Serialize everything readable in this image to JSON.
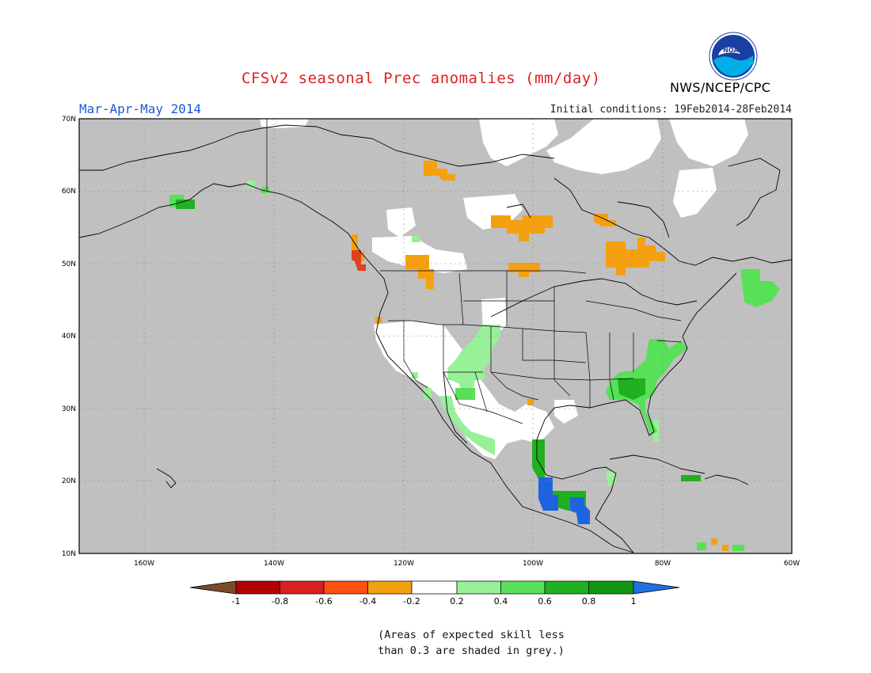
{
  "header": {
    "title": "CFSv2 seasonal Prec anomalies (mm/day)",
    "season": "Mar-Apr-May 2014",
    "initial_conditions": "Initial conditions: 19Feb2014-28Feb2014",
    "agency": "NWS/NCEP/CPC",
    "logo_text": "NOAA"
  },
  "map": {
    "lon_range": [
      -170,
      -60
    ],
    "lat_range": [
      10,
      70
    ],
    "lat_labels": [
      "70N",
      "60N",
      "50N",
      "40N",
      "30N",
      "20N",
      "10N"
    ],
    "lon_labels": [
      "160W",
      "140W",
      "120W",
      "100W",
      "80W",
      "60W"
    ],
    "colors": {
      "background_grey": "#c0c0c0",
      "no_anomaly": "#ffffff",
      "dry_strong": "#e04020",
      "dry": "#f0a000",
      "wet_light": "#90ee90",
      "wet": "#50dd50",
      "wet_strong": "#20b020",
      "wet_max": "#1e64e0"
    }
  },
  "colorbar": {
    "labels": [
      "-1",
      "-0.8",
      "-0.6",
      "-0.4",
      "-0.2",
      "0.2",
      "0.4",
      "0.6",
      "0.8",
      "1"
    ],
    "colors": [
      "#7a4a2a",
      "#b40000",
      "#d82020",
      "#ff5010",
      "#f5a010",
      "#ffffff",
      "#98f098",
      "#58e058",
      "#20b020",
      "#129612",
      "#2070e0"
    ]
  },
  "footnote": {
    "line1": "(Areas of expected skill less",
    "line2": "than 0.3 are shaded in grey.)"
  }
}
